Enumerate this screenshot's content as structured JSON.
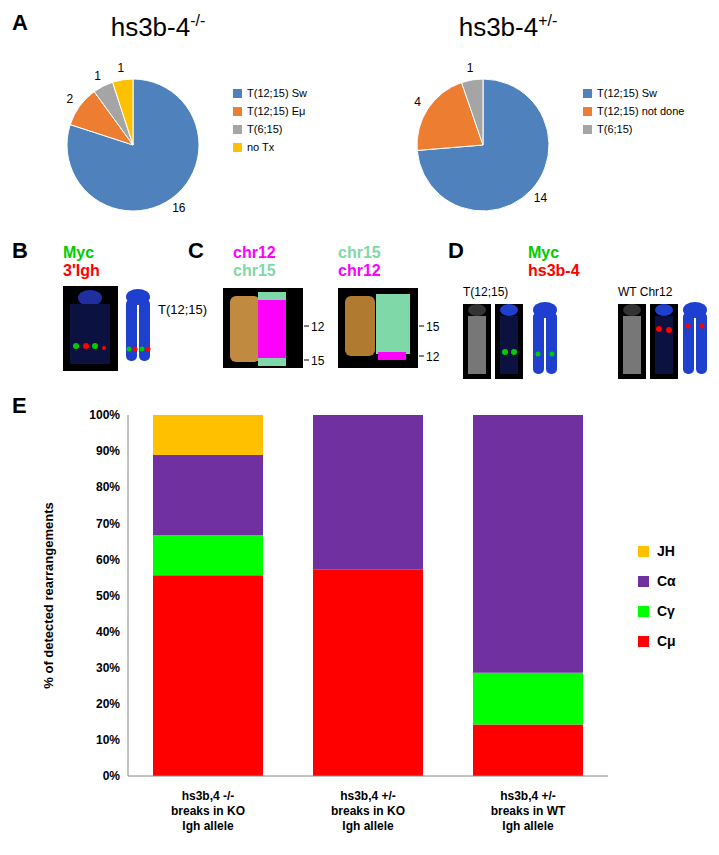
{
  "chart_data": [
    {
      "type": "pie",
      "title": "hs3b-4",
      "title_superscript": "-/-",
      "categories": [
        "T(12;15) Sw",
        "T(12;15) Eμ",
        "T(6;15)",
        "no Tx"
      ],
      "values": [
        16,
        2,
        1,
        1
      ],
      "colors": [
        "#4f81bd",
        "#ed7d31",
        "#a5a5a5",
        "#ffc000"
      ],
      "data_labels": true,
      "legend": "right"
    },
    {
      "type": "pie",
      "title": "hs3b-4",
      "title_superscript": "+/-",
      "categories": [
        "T(12;15) Sw",
        "T(12;15) not done",
        "T(6;15)"
      ],
      "values": [
        14,
        4,
        1
      ],
      "colors": [
        "#4f81bd",
        "#ed7d31",
        "#a5a5a5"
      ],
      "data_labels": true,
      "legend": "right"
    },
    {
      "type": "bar",
      "stacked": true,
      "categories": [
        "hs3b,4 -/- breaks in KO Igh allele",
        "hs3b,4 +/- breaks in KO Igh allele",
        "hs3b,4 +/- breaks in WT Igh allele"
      ],
      "series": [
        {
          "name": "Cμ",
          "color": "#ff0000",
          "values": [
            55.6,
            57.1,
            14.3
          ]
        },
        {
          "name": "Cγ",
          "color": "#00ff00",
          "values": [
            11.1,
            0,
            14.3
          ]
        },
        {
          "name": "Cα",
          "color": "#7030a0",
          "values": [
            22.2,
            42.9,
            71.4
          ]
        },
        {
          "name": "JH",
          "color": "#ffc000",
          "values": [
            11.1,
            0,
            0
          ]
        }
      ],
      "y_label": "% of detected rearrangements",
      "ylim": [
        0,
        100
      ],
      "yticks": [
        {
          "value": 0,
          "label": "0%"
        },
        {
          "value": 10,
          "label": "10%"
        },
        {
          "value": 20,
          "label": "20%"
        },
        {
          "value": 30,
          "label": "30%"
        },
        {
          "value": 40,
          "label": "40%"
        },
        {
          "value": 50,
          "label": "50%"
        },
        {
          "value": 60,
          "label": "60%"
        },
        {
          "value": 70,
          "label": "70%"
        },
        {
          "value": 80,
          "label": "80%"
        },
        {
          "value": 90,
          "label": "90%"
        },
        {
          "value": 100,
          "label": "100%"
        }
      ],
      "legend": "right"
    }
  ],
  "panel_labels": [
    "A",
    "B",
    "C",
    "D",
    "E"
  ],
  "panel_B": {
    "probes": [
      {
        "label": "Myc",
        "color": "#00cc00"
      },
      {
        "label": "3'Igh",
        "color": "#ff0000"
      }
    ],
    "caption": "T(12;15)"
  },
  "panel_C": {
    "left_header": [
      {
        "label": "chr12",
        "color": "#ff00ff"
      },
      {
        "label": "chr15",
        "color": "#7fd8a8"
      }
    ],
    "right_header": [
      {
        "label": "chr15",
        "color": "#7fd8a8"
      },
      {
        "label": "chr12",
        "color": "#ff00ff"
      }
    ],
    "left_marks": [
      "12",
      "15"
    ],
    "right_marks": [
      "15",
      "12"
    ]
  },
  "panel_D": {
    "probes": [
      {
        "label": "Myc",
        "color": "#00cc00"
      },
      {
        "label": "hs3b-4",
        "color": "#ff0000"
      }
    ],
    "captions": [
      "T(12;15)",
      "WT Chr12"
    ]
  }
}
